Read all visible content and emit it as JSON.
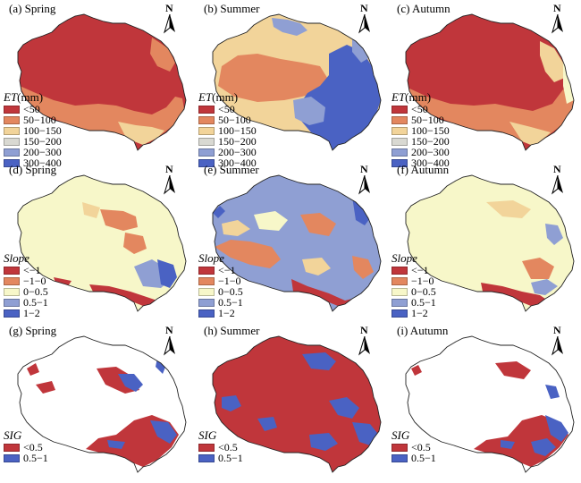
{
  "colors": {
    "c1": "#c0363b",
    "c2": "#e3875f",
    "c3": "#f2d49a",
    "c4": "#f7f7c9",
    "c5": "#8f9fd3",
    "c6": "#4a62c3",
    "boundary": "#222222"
  },
  "north_label": "N",
  "legends": {
    "et": {
      "title": "ET",
      "unit": "(mm)",
      "items": [
        {
          "label": "<50",
          "color": "#c0363b"
        },
        {
          "label": "50−100",
          "color": "#e3875f"
        },
        {
          "label": "100−150",
          "color": "#f2d49a"
        },
        {
          "label": "150−200",
          "color": "#d9d9d2"
        },
        {
          "label": "200−300",
          "color": "#8f9fd3"
        },
        {
          "label": "300−400",
          "color": "#4a62c3"
        }
      ]
    },
    "slope": {
      "title": "Slope",
      "items": [
        {
          "label": "<−1",
          "color": "#c0363b"
        },
        {
          "label": "−1−0",
          "color": "#e3875f"
        },
        {
          "label": "0−0.5",
          "color": "#f7f7c9"
        },
        {
          "label": "0.5−1",
          "color": "#8f9fd3"
        },
        {
          "label": "1−2",
          "color": "#4a62c3"
        }
      ]
    },
    "sig": {
      "title": "SIG",
      "items": [
        {
          "label": "<0.5",
          "color": "#c0363b"
        },
        {
          "label": "0.5−1",
          "color": "#4a62c3"
        }
      ]
    }
  },
  "panels": [
    {
      "id": "a",
      "title": "(a) Spring",
      "legend": "et"
    },
    {
      "id": "b",
      "title": "(b) Summer",
      "legend": "et"
    },
    {
      "id": "c",
      "title": "(c) Autumn",
      "legend": "et"
    },
    {
      "id": "d",
      "title": "(d) Spring",
      "legend": "slope"
    },
    {
      "id": "e",
      "title": "(e) Summer",
      "legend": "slope"
    },
    {
      "id": "f",
      "title": "(f) Autumn",
      "legend": "slope"
    },
    {
      "id": "g",
      "title": "(g) Spring",
      "legend": "sig"
    },
    {
      "id": "h",
      "title": "(h) Summer",
      "legend": "sig"
    },
    {
      "id": "i",
      "title": "(i) Autumn",
      "legend": "sig"
    }
  ]
}
